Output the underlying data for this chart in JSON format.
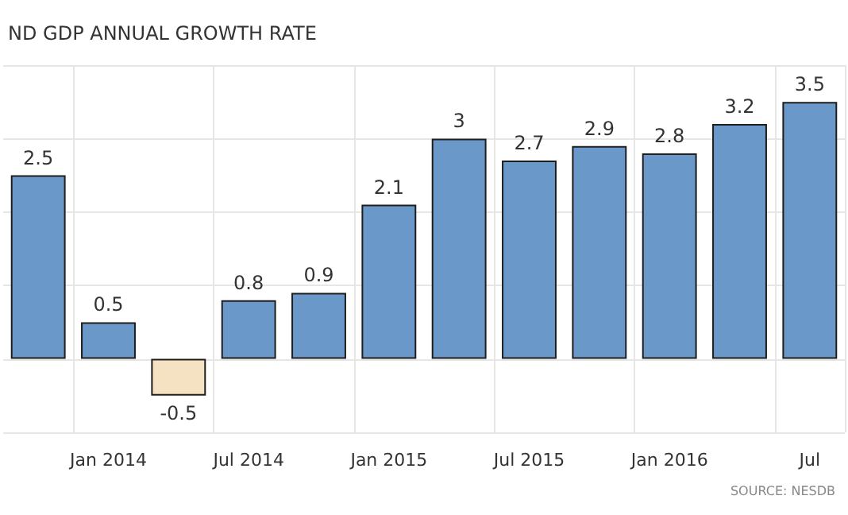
{
  "chart_data": {
    "type": "bar",
    "title": "ND GDP ANNUAL GROWTH RATE",
    "categories": [
      null,
      "Jan 2014",
      null,
      "Jul 2014",
      null,
      "Jan 2015",
      null,
      "Jul 2015",
      null,
      "Jan 2016",
      null,
      "Jul"
    ],
    "values": [
      2.5,
      0.5,
      -0.5,
      0.8,
      0.9,
      2.1,
      3,
      2.7,
      2.9,
      2.8,
      3.2,
      3.5
    ],
    "colors": [
      "#6a98c8",
      "#6a98c8",
      "#f5e2c2",
      "#6a98c8",
      "#6a98c8",
      "#6a98c8",
      "#6a98c8",
      "#6a98c8",
      "#6a98c8",
      "#6a98c8",
      "#6a98c8",
      "#6a98c8"
    ],
    "data_labels": true,
    "tick_labels": "x",
    "grid": true,
    "annotations": [
      "SOURCE: NESDB"
    ]
  }
}
